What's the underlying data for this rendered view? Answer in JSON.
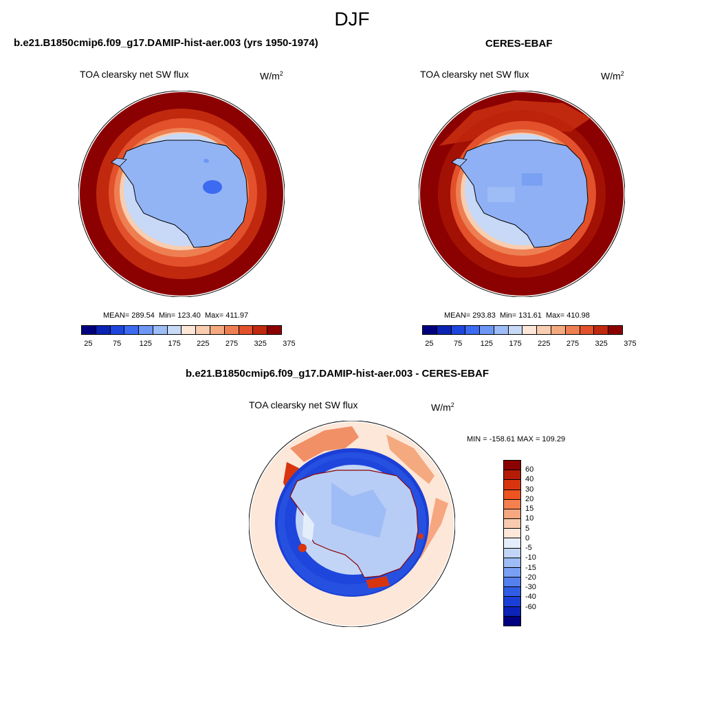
{
  "season": "DJF",
  "left_panel": {
    "title": "b.e21.B1850cmip6.f09_g17.DAMIP-hist-aer.003 (yrs 1950-1974)",
    "variable": "TOA clearsky net SW flux",
    "unit": "W/m",
    "unit_exp": "2",
    "mean_label": "MEAN= 289.54",
    "min_label": "Min= 123.40",
    "max_label": "Max= 411.97"
  },
  "right_panel": {
    "title": "CERES-EBAF",
    "variable": "TOA clearsky net SW flux",
    "unit": "W/m",
    "unit_exp": "2",
    "mean_label": "MEAN= 293.83",
    "min_label": "Min= 131.61",
    "max_label": "Max= 410.98"
  },
  "diff_panel": {
    "title": "b.e21.B1850cmip6.f09_g17.DAMIP-hist-aer.003 - CERES-EBAF",
    "variable": "TOA clearsky net SW flux",
    "unit": "W/m",
    "unit_exp": "2",
    "minmax_label": "MIN = -158.61 MAX = 109.29"
  },
  "abs_colorbar": {
    "colors": [
      "#00007f",
      "#0a23b3",
      "#1e46dd",
      "#3c6af0",
      "#6e96f5",
      "#9ebcf5",
      "#c7d9f6",
      "#fbe6d8",
      "#f8cdb0",
      "#f4a97f",
      "#ee7f52",
      "#e2512b",
      "#c1290f",
      "#8b0000"
    ],
    "tick_labels": [
      "25",
      "75",
      "125",
      "175",
      "225",
      "275",
      "325",
      "375"
    ]
  },
  "diff_colorbar": {
    "colors": [
      "#8b0000",
      "#b51c06",
      "#d8350f",
      "#ec5422",
      "#f4804d",
      "#f6a77f",
      "#f8cbb0",
      "#fde7d8",
      "#e4eefa",
      "#c2d5f6",
      "#9ebcf5",
      "#7aa0f3",
      "#5580ee",
      "#2f5de6",
      "#1b3fd6",
      "#0d22b8",
      "#000080"
    ],
    "tick_labels": [
      "60",
      "40",
      "30",
      "20",
      "15",
      "10",
      "5",
      "0",
      "-5",
      "-10",
      "-15",
      "-20",
      "-30",
      "-40",
      "-60"
    ]
  }
}
